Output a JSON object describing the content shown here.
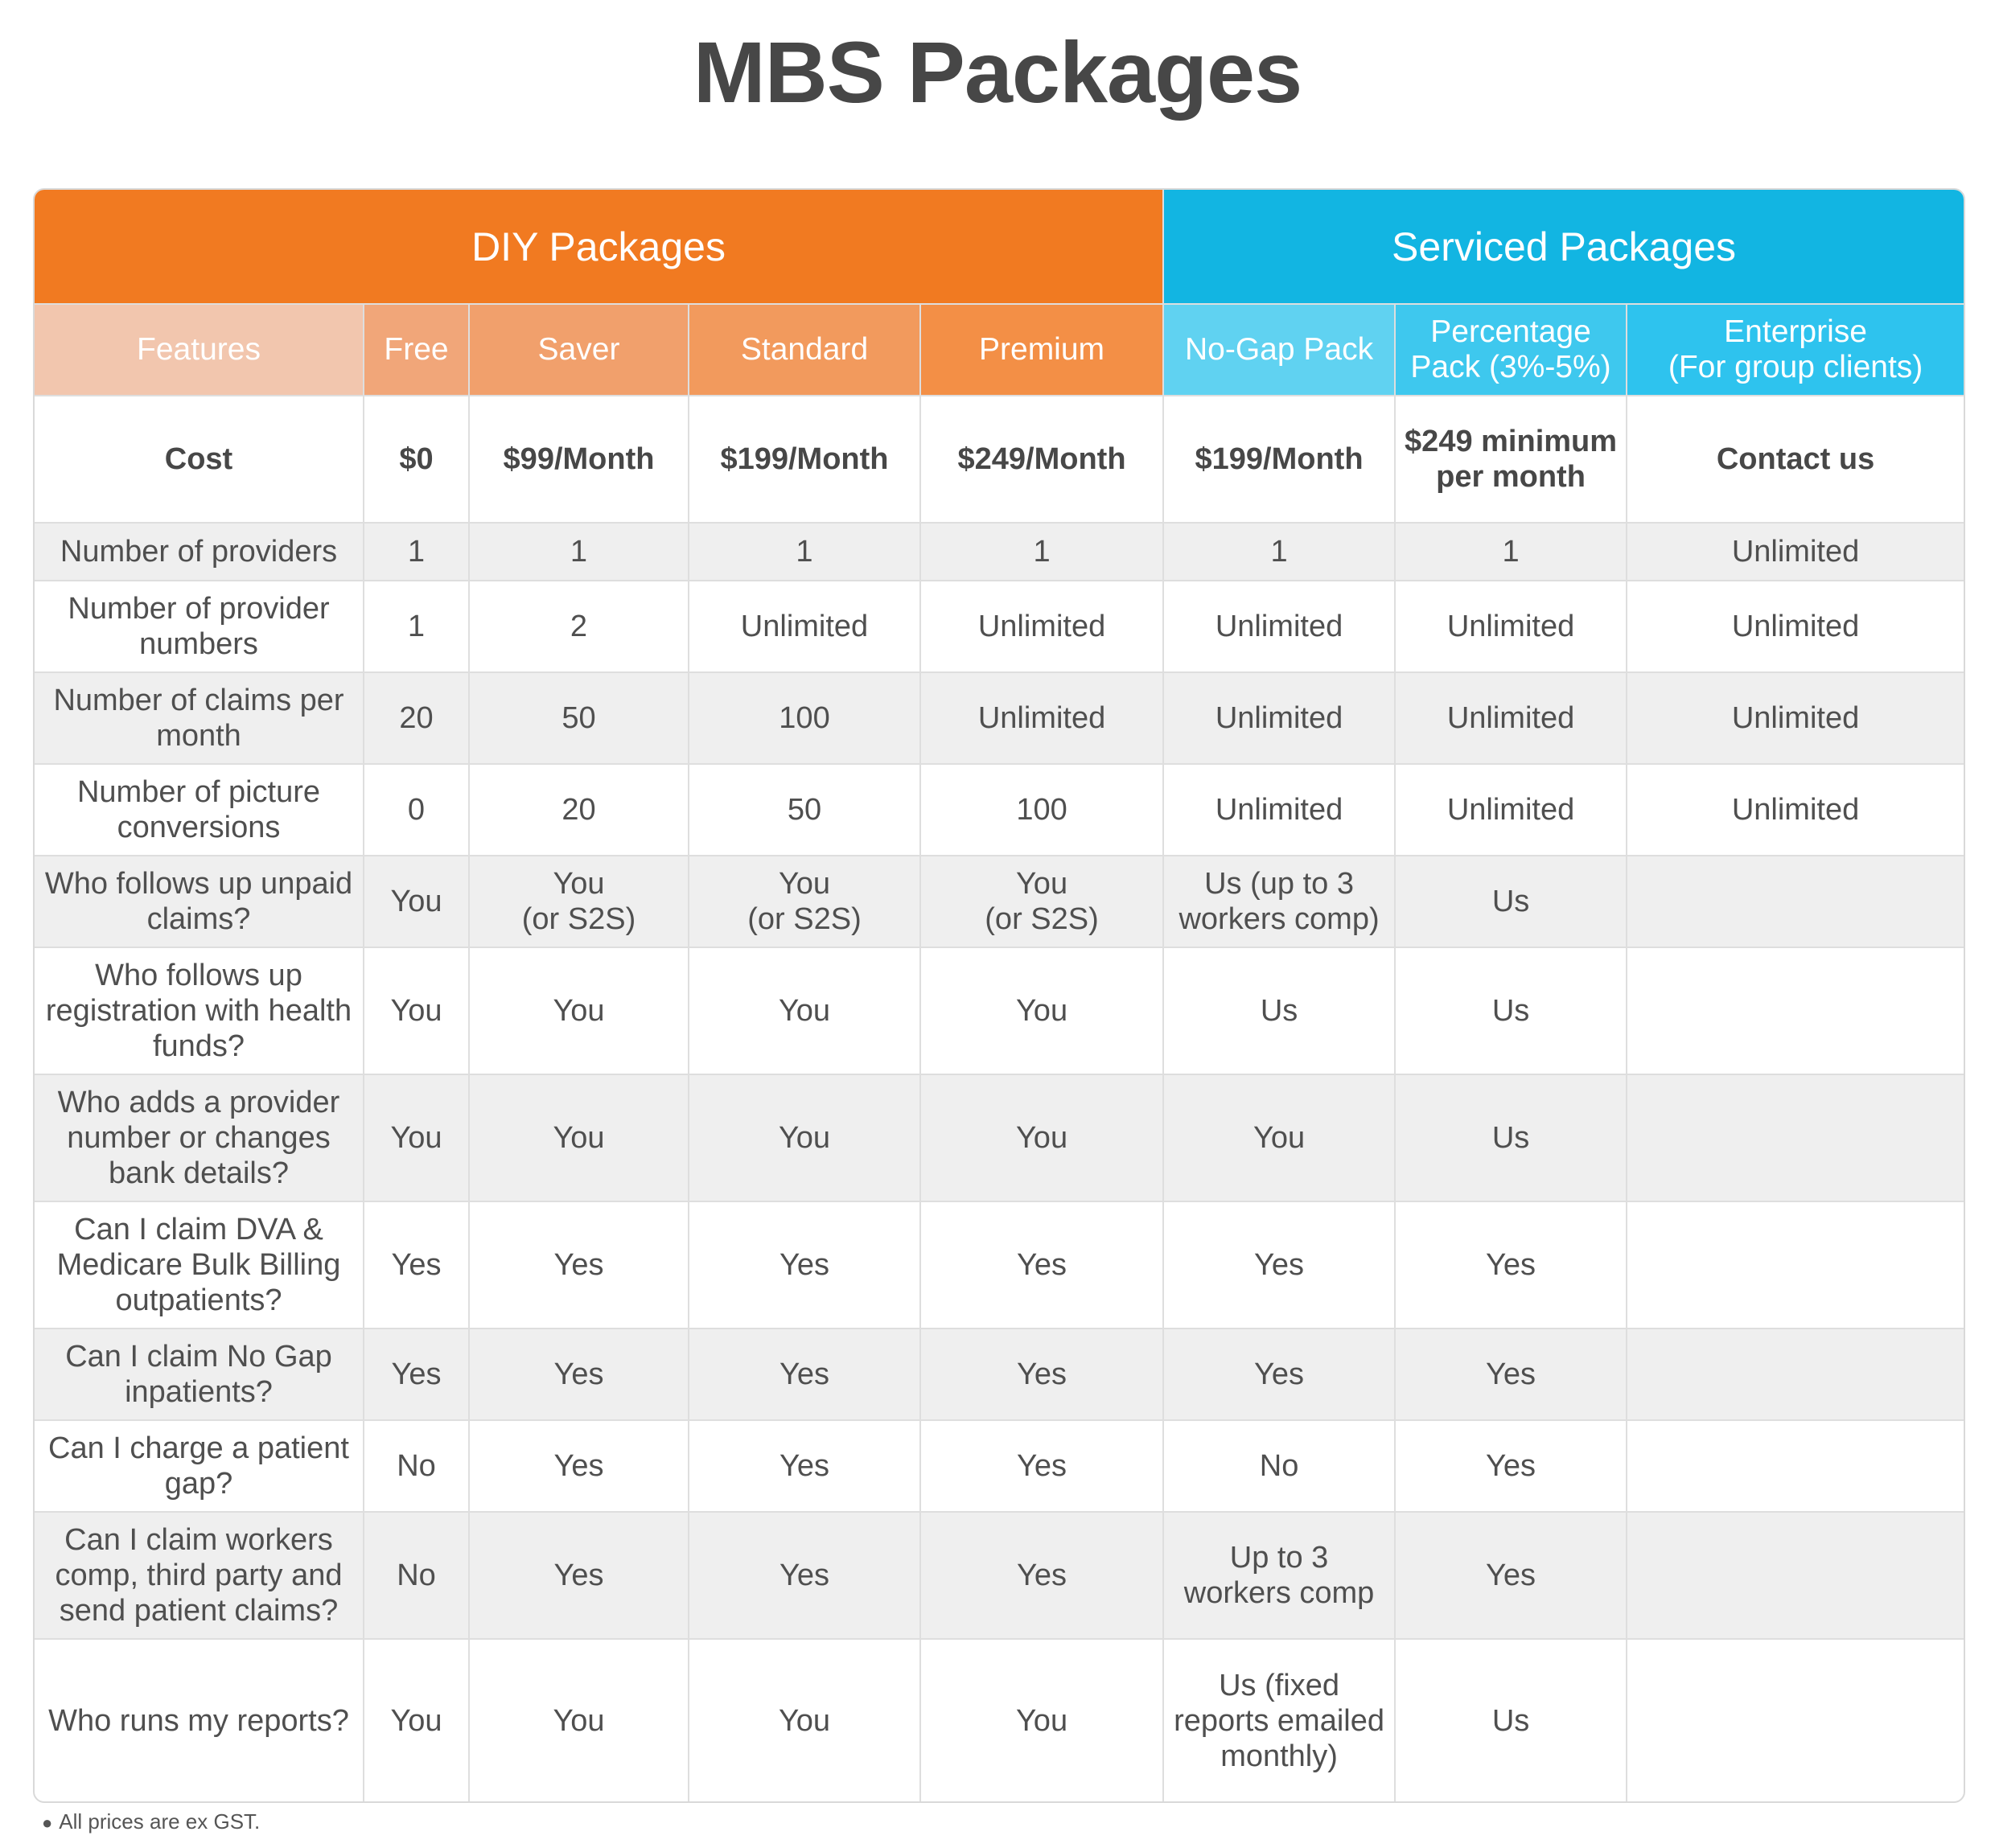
{
  "title": "MBS Packages",
  "groups": {
    "diy": "DIY Packages",
    "serviced": "Serviced Packages"
  },
  "columns": {
    "features": "Features",
    "free": "Free",
    "saver": "Saver",
    "standard": "Standard",
    "premium": "Premium",
    "nogap": "No-Gap Pack",
    "percentage_1": "Percentage",
    "percentage_2": "Pack (3%-5%)",
    "enterprise_1": "Enterprise",
    "enterprise_2": "(For group clients)"
  },
  "rows": [
    {
      "feature": "Cost",
      "cells": [
        "$0",
        "$99/Month",
        "$199/Month",
        "$249/Month",
        "$199/Month",
        "$249 minimum per month",
        "Contact us"
      ]
    },
    {
      "feature": "Number of providers",
      "cells": [
        "1",
        "1",
        "1",
        "1",
        "1",
        "1",
        "Unlimited"
      ]
    },
    {
      "feature": "Number of provider numbers",
      "cells": [
        "1",
        "2",
        "Unlimited",
        "Unlimited",
        "Unlimited",
        "Unlimited",
        "Unlimited"
      ]
    },
    {
      "feature": "Number of claims per month",
      "cells": [
        "20",
        "50",
        "100",
        "Unlimited",
        "Unlimited",
        "Unlimited",
        "Unlimited"
      ]
    },
    {
      "feature": "Number of picture conversions",
      "cells": [
        "0",
        "20",
        "50",
        "100",
        "Unlimited",
        "Unlimited",
        "Unlimited"
      ]
    },
    {
      "feature": "Who follows up unpaid claims?",
      "cells": [
        "You",
        "You\n(or S2S)",
        "You\n(or S2S)",
        "You\n(or S2S)",
        "Us (up to 3 workers comp)",
        "Us",
        ""
      ]
    },
    {
      "feature": "Who follows up registration with health funds?",
      "cells": [
        "You",
        "You",
        "You",
        "You",
        "Us",
        "Us",
        ""
      ]
    },
    {
      "feature": "Who adds a provider number or changes bank details?",
      "cells": [
        "You",
        "You",
        "You",
        "You",
        "You",
        "Us",
        ""
      ]
    },
    {
      "feature": "Can I claim DVA & Medicare Bulk Billing outpatients?",
      "cells": [
        "Yes",
        "Yes",
        "Yes",
        "Yes",
        "Yes",
        "Yes",
        ""
      ]
    },
    {
      "feature": "Can I claim No Gap inpatients?",
      "cells": [
        "Yes",
        "Yes",
        "Yes",
        "Yes",
        "Yes",
        "Yes",
        ""
      ]
    },
    {
      "feature": "Can I charge a patient gap?",
      "cells": [
        "No",
        "Yes",
        "Yes",
        "Yes",
        "No",
        "Yes",
        ""
      ]
    },
    {
      "feature": "Can I claim workers comp, third party and send patient claims?",
      "cells": [
        "No",
        "Yes",
        "Yes",
        "Yes",
        "Up to 3 workers comp",
        "Yes",
        ""
      ]
    },
    {
      "feature": "Who runs my reports?",
      "cells": [
        "You",
        "You",
        "You",
        "You",
        "Us (fixed reports emailed monthly)",
        "Us",
        ""
      ]
    }
  ],
  "footnote": "All prices are ex GST.",
  "colors": {
    "diy": "#f17a21",
    "serviced": "#12b5e2"
  }
}
